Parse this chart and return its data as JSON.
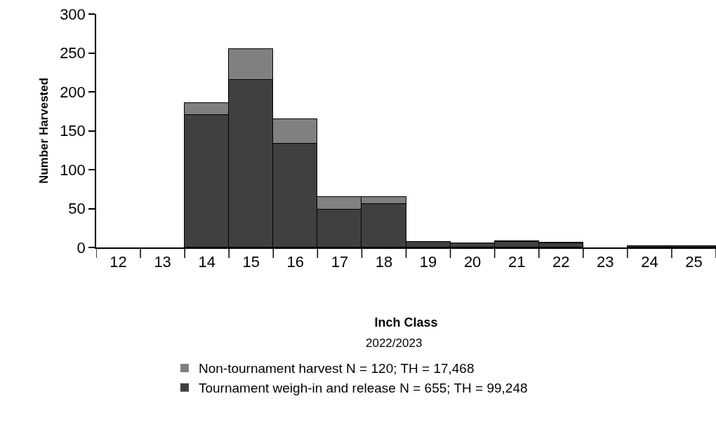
{
  "chart_data": {
    "type": "bar",
    "stacked": true,
    "xlabel": "Inch Class",
    "ylabel": "Number Harvested",
    "annotations": [
      "2022/2023"
    ],
    "categories": [
      "12",
      "13",
      "14",
      "15",
      "16",
      "17",
      "18",
      "19",
      "20",
      "21",
      "22",
      "23",
      "24",
      "25"
    ],
    "series": [
      {
        "name": "Tournament weigh-in and release N = 655; TH = 99,248",
        "color": "#404040",
        "values": [
          0,
          0,
          170,
          215,
          133,
          49,
          56,
          7,
          5,
          7,
          5,
          0,
          2,
          2
        ]
      },
      {
        "name": "Non-tournament harvest N = 120; TH = 17,468",
        "color": "#808080",
        "values": [
          0,
          0,
          16,
          40,
          32,
          16,
          9,
          0,
          0,
          1,
          1,
          0,
          0,
          0
        ]
      }
    ],
    "ylim": [
      0,
      300
    ],
    "yticks": [
      0,
      50,
      100,
      150,
      200,
      250,
      300
    ],
    "legend": "bottom"
  }
}
